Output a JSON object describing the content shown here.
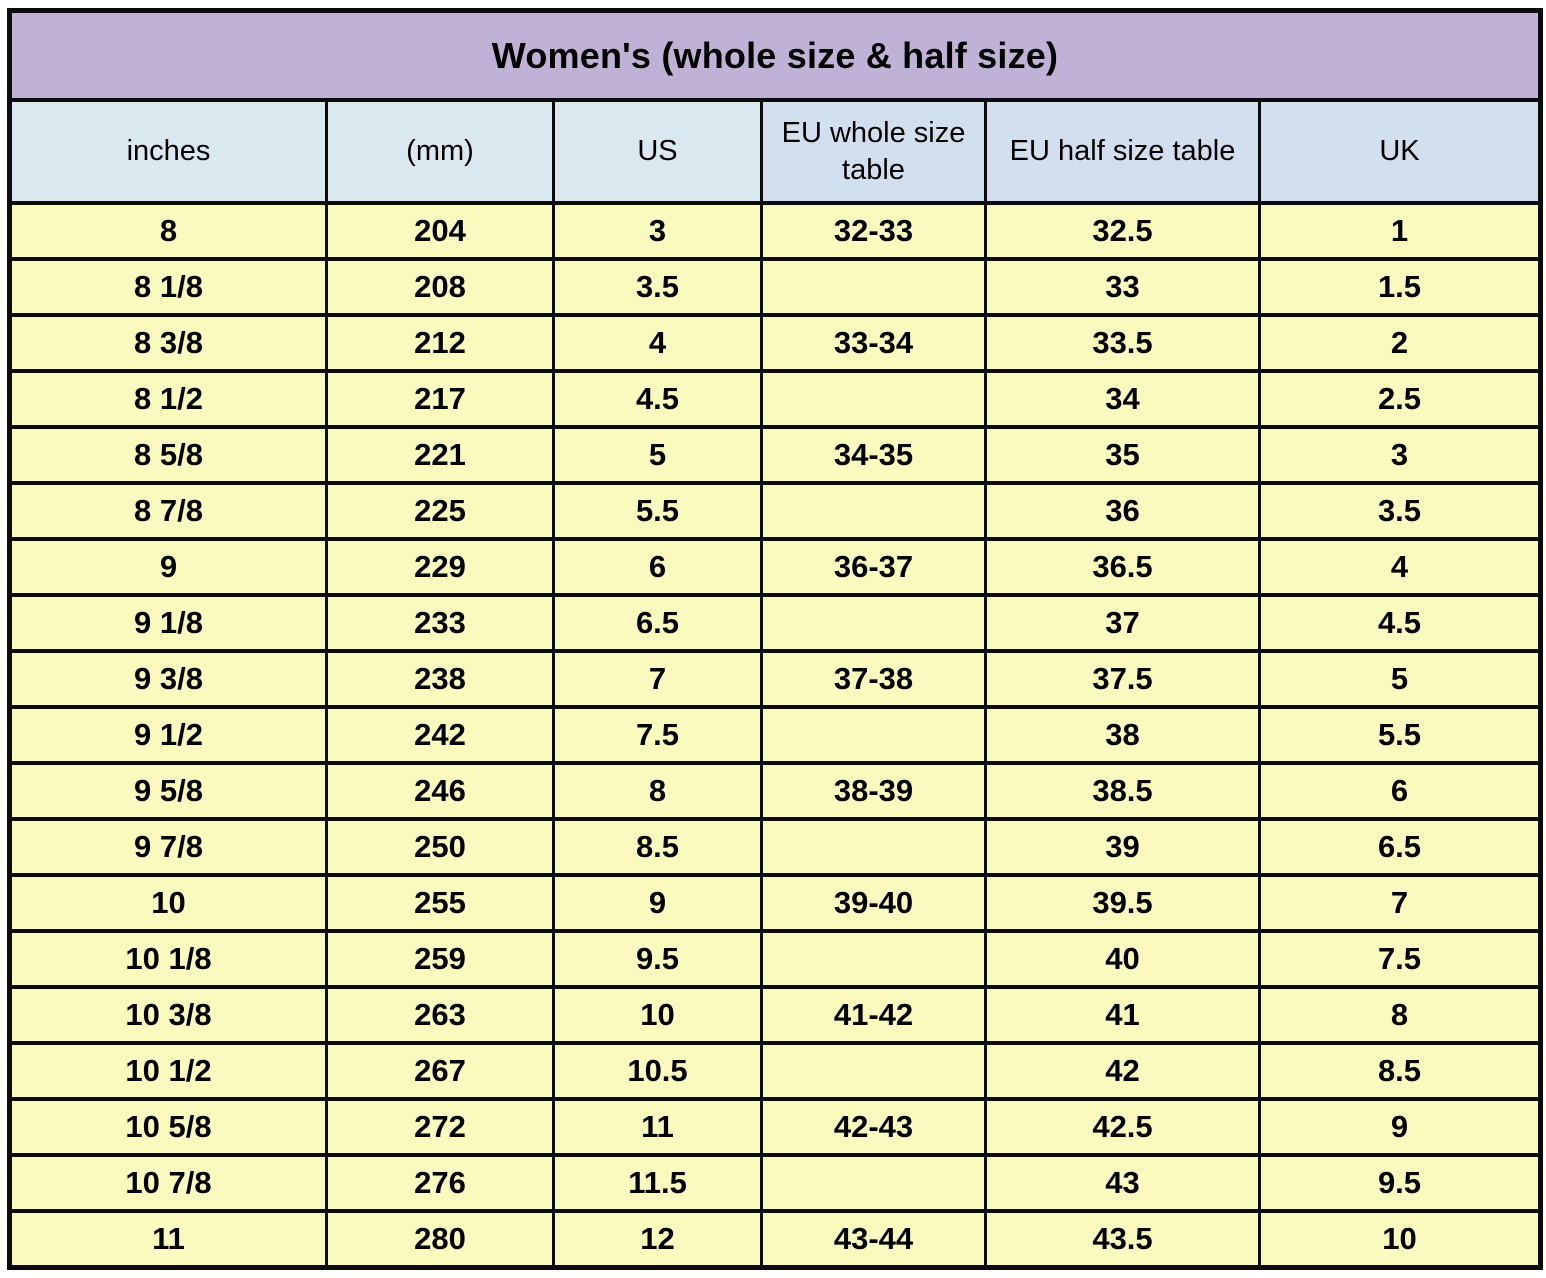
{
  "table": {
    "title": "Women's (whole size & half size)",
    "columns": [
      "inches",
      "(mm)",
      "US",
      "EU whole size table",
      "EU half size table",
      "UK"
    ],
    "column_keys": [
      "inches",
      "mm",
      "us",
      "eu-whole-size",
      "eu-half-size",
      "uk"
    ],
    "rows": [
      [
        "8",
        "204",
        "3",
        "32-33",
        "32.5",
        "1"
      ],
      [
        "8 1/8",
        "208",
        "3.5",
        "",
        "33",
        "1.5"
      ],
      [
        "8 3/8",
        "212",
        "4",
        "33-34",
        "33.5",
        "2"
      ],
      [
        "8 1/2",
        "217",
        "4.5",
        "",
        "34",
        "2.5"
      ],
      [
        "8 5/8",
        "221",
        "5",
        "34-35",
        "35",
        "3"
      ],
      [
        "8 7/8",
        "225",
        "5.5",
        "",
        "36",
        "3.5"
      ],
      [
        "9",
        "229",
        "6",
        "36-37",
        "36.5",
        "4"
      ],
      [
        "9 1/8",
        "233",
        "6.5",
        "",
        "37",
        "4.5"
      ],
      [
        "9 3/8",
        "238",
        "7",
        "37-38",
        "37.5",
        "5"
      ],
      [
        "9 1/2",
        "242",
        "7.5",
        "",
        "38",
        "5.5"
      ],
      [
        "9 5/8",
        "246",
        "8",
        "38-39",
        "38.5",
        "6"
      ],
      [
        "9 7/8",
        "250",
        "8.5",
        "",
        "39",
        "6.5"
      ],
      [
        "10",
        "255",
        "9",
        "39-40",
        "39.5",
        "7"
      ],
      [
        "10 1/8",
        "259",
        "9.5",
        "",
        "40",
        "7.5"
      ],
      [
        "10 3/8",
        "263",
        "10",
        "41-42",
        "41",
        "8"
      ],
      [
        "10 1/2",
        "267",
        "10.5",
        "",
        "42",
        "8.5"
      ],
      [
        "10 5/8",
        "272",
        "11",
        "42-43",
        "42.5",
        "9"
      ],
      [
        "10 7/8",
        "276",
        "11.5",
        "",
        "43",
        "9.5"
      ],
      [
        "11",
        "280",
        "12",
        "43-44",
        "43.5",
        "10"
      ]
    ],
    "colors": {
      "title_bg": "#c0b1d6",
      "header_bg_left": "#d9e9ef",
      "header_bg_right": "#d2dfee",
      "row_bg": "#fafabe",
      "border": "#0c0c0c",
      "text": "#000000"
    }
  }
}
